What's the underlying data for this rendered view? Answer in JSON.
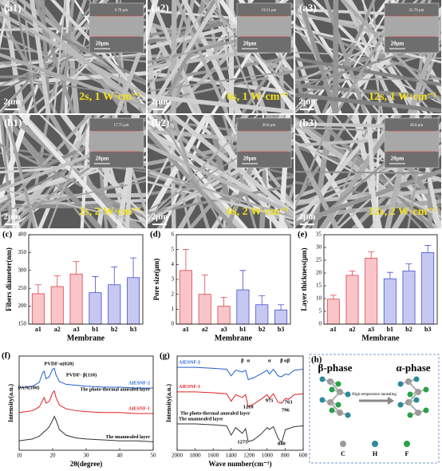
{
  "sem_panels": [
    {
      "label": "(a1)",
      "thickness": "9.78 μm",
      "scale_inset": "20μm",
      "scale": "2μm",
      "condition": "2s, 1 W·cm⁻¹"
    },
    {
      "label": "(a2)",
      "thickness": "19.11 μm",
      "scale_inset": "20μm",
      "scale": "2μm",
      "condition": "6s, 1 W·cm⁻¹"
    },
    {
      "label": "(a3)",
      "thickness": "25.78 μm",
      "scale_inset": "20μm",
      "scale": "2μm",
      "condition": "12s, 1 W·cm⁻¹"
    },
    {
      "label": "(b1)",
      "thickness": "17.75 μm",
      "scale_inset": "20μm",
      "scale": "2μm",
      "condition": "2s, 2 W·cm⁻¹"
    },
    {
      "label": "(b2)",
      "thickness": "20.8 μm",
      "scale_inset": "20μm",
      "scale": "2μm",
      "condition": "6s, 2 W·cm⁻¹"
    },
    {
      "label": "(b3)",
      "thickness": "28.0 μm",
      "scale_inset": "20μm",
      "scale": "2μm",
      "condition": "12s, 2 W·cm⁻¹"
    }
  ],
  "chart_data": [
    {
      "type": "bar",
      "panel": "(c)",
      "x_label": "Membrane",
      "y_label": "Fibers diameter(nm)",
      "categories": [
        "a1",
        "a2",
        "a3",
        "b1",
        "b2",
        "b3"
      ],
      "values": [
        235,
        255,
        290,
        238,
        260,
        280
      ],
      "errors": [
        25,
        30,
        35,
        45,
        50,
        55
      ],
      "colors": [
        "#f9c5c8",
        "#f9c5c8",
        "#f9c5c8",
        "#c6c8f2",
        "#c6c8f2",
        "#c6c8f2"
      ],
      "edge_colors": [
        "#e0464e",
        "#e0464e",
        "#e0464e",
        "#4a4fd0",
        "#4a4fd0",
        "#4a4fd0"
      ],
      "ylim": [
        150,
        400
      ],
      "yticks": [
        150,
        200,
        250,
        300,
        350,
        400
      ]
    },
    {
      "type": "bar",
      "panel": "(d)",
      "x_label": "Membrane",
      "y_label": "Pore size(μm)",
      "categories": [
        "a1",
        "a2",
        "a3",
        "b1",
        "b2",
        "b3"
      ],
      "values": [
        3.6,
        2.0,
        1.2,
        2.3,
        1.3,
        0.95
      ],
      "errors": [
        1.4,
        1.3,
        0.6,
        1.3,
        0.6,
        0.35
      ],
      "colors": [
        "#f9c5c8",
        "#f9c5c8",
        "#f9c5c8",
        "#c6c8f2",
        "#c6c8f2",
        "#c6c8f2"
      ],
      "edge_colors": [
        "#e0464e",
        "#e0464e",
        "#e0464e",
        "#4a4fd0",
        "#4a4fd0",
        "#4a4fd0"
      ],
      "ylim": [
        0,
        6
      ],
      "yticks": [
        0,
        1,
        2,
        3,
        4,
        5,
        6
      ]
    },
    {
      "type": "bar",
      "panel": "(e)",
      "x_label": "Membrane",
      "y_label": "Layer thickness(μm)",
      "categories": [
        "a1",
        "a2",
        "a3",
        "b1",
        "b2",
        "b3"
      ],
      "values": [
        9.78,
        19.11,
        25.78,
        17.75,
        20.8,
        28.0
      ],
      "errors": [
        1.5,
        1.7,
        2.5,
        2.5,
        2.8,
        2.8
      ],
      "colors": [
        "#f9c5c8",
        "#f9c5c8",
        "#f9c5c8",
        "#c6c8f2",
        "#c6c8f2",
        "#c6c8f2"
      ],
      "edge_colors": [
        "#e0464e",
        "#e0464e",
        "#e0464e",
        "#4a4fd0",
        "#4a4fd0",
        "#4a4fd0"
      ],
      "ylim": [
        0,
        35
      ],
      "yticks": [
        0,
        5,
        10,
        15,
        20,
        25,
        30,
        35
      ]
    },
    {
      "type": "line",
      "panel": "(f)",
      "x_label": "2θ(degree)",
      "y_label": "Intensity(a.u.)",
      "x": [
        10,
        12,
        14,
        16,
        17,
        17.5,
        18,
        19,
        20,
        20.5,
        21,
        22,
        24,
        27,
        30,
        35,
        40,
        45,
        50
      ],
      "series": [
        {
          "name": "The unannealed layer",
          "color": "#333333",
          "values": [
            1.0,
            1.1,
            1.2,
            1.5,
            1.8,
            2.0,
            2.1,
            2.5,
            3.2,
            3.6,
            3.2,
            2.2,
            1.6,
            1.3,
            1.2,
            1.1,
            1.0,
            1.0,
            0.9
          ]
        },
        {
          "name": "AIESNF-1",
          "color": "#e02020",
          "values": [
            4.0,
            4.1,
            4.2,
            4.6,
            5.3,
            5.6,
            5.0,
            5.2,
            6.1,
            6.3,
            5.6,
            4.8,
            4.4,
            4.2,
            4.1,
            4.0,
            4.0,
            3.9,
            3.9
          ]
        },
        {
          "name": "AIESNF-2",
          "color": "#1f5fd0",
          "values": [
            6.6,
            6.7,
            6.8,
            7.2,
            8.2,
            8.4,
            7.6,
            7.8,
            8.6,
            8.7,
            8.0,
            7.3,
            7.0,
            6.9,
            6.8,
            6.7,
            6.7,
            6.6,
            6.6
          ]
        }
      ],
      "annotations": [
        "PAN(100)",
        "PVDF-α(020)",
        "PVDF- β(110)",
        "The photo-thermal annealed layer"
      ],
      "xlim": [
        10,
        50
      ],
      "xticks": [
        10,
        20,
        30,
        40,
        50
      ],
      "ylim": [
        0,
        10
      ]
    },
    {
      "type": "line",
      "panel": "(g)",
      "x_label": "Wave number(cm⁻¹)",
      "y_label": "Intensity(a.u.)",
      "x": [
        2000,
        1800,
        1600,
        1450,
        1400,
        1350,
        1275,
        1240,
        1210,
        1150,
        1070,
        1000,
        975,
        930,
        880,
        840,
        796,
        763,
        700,
        600
      ],
      "series": [
        {
          "name": "The unannealed layer",
          "color": "#333333",
          "values": [
            2.8,
            2.8,
            2.7,
            2.6,
            1.6,
            2.4,
            1.8,
            2.3,
            0.9,
            1.1,
            1.7,
            2.4,
            2.2,
            2.5,
            1.3,
            0.8,
            2.2,
            2.3,
            2.5,
            2.6
          ]
        },
        {
          "name": "AIESNF-1",
          "color": "#e02020",
          "values": [
            6.2,
            6.2,
            6.1,
            6.0,
            5.2,
            5.9,
            5.6,
            5.9,
            4.6,
            4.9,
            5.4,
            5.9,
            5.5,
            6.0,
            5.1,
            5.0,
            5.5,
            5.4,
            5.9,
            6.0
          ]
        },
        {
          "name": "AIESNF-2",
          "color": "#1f5fd0",
          "values": [
            8.8,
            8.8,
            8.7,
            8.6,
            7.9,
            8.5,
            8.3,
            8.5,
            7.5,
            7.7,
            8.1,
            8.5,
            8.1,
            8.6,
            7.9,
            7.8,
            8.1,
            8.0,
            8.5,
            8.6
          ]
        }
      ],
      "annotations": [
        "β",
        "α",
        "α",
        "β",
        "α",
        "β",
        "The photo-thermal annealed layer",
        "1275",
        "1210",
        "975",
        "840",
        "796",
        "763"
      ],
      "xlim": [
        2000,
        600
      ],
      "xticks": [
        2000,
        1800,
        1600,
        1400,
        1200,
        1000,
        800,
        600
      ],
      "ylim": [
        0,
        10
      ]
    }
  ],
  "diagram": {
    "panel": "(h)",
    "left_title": "β-phase",
    "right_title": "α-phase",
    "arrow_label": "High temperature annealing",
    "legend": [
      {
        "name": "C",
        "color": "#9a9a9a"
      },
      {
        "name": "H",
        "color": "#2a8a9a"
      },
      {
        "name": "F",
        "color": "#2aa04a"
      }
    ]
  }
}
